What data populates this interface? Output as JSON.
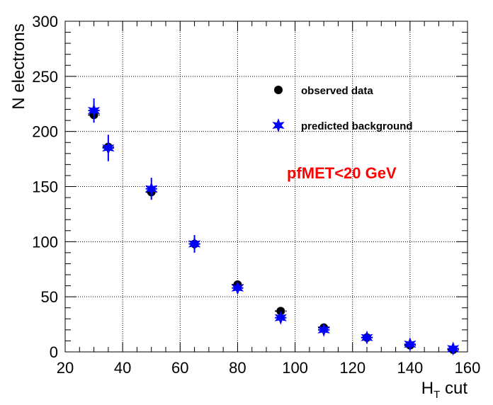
{
  "chart_data": {
    "type": "scatter",
    "title": "",
    "xlabel": "H",
    "xlabel_sub": "T",
    "xlabel_suffix": " cut",
    "ylabel": "N electrons",
    "xlim": [
      20,
      160
    ],
    "ylim": [
      0,
      300
    ],
    "xticks": [
      20,
      40,
      60,
      80,
      100,
      120,
      140,
      160
    ],
    "yticks": [
      0,
      50,
      100,
      150,
      200,
      250,
      300
    ],
    "grid": true,
    "legend_position": "top-right",
    "annotation": {
      "text": "pfMET<20 GeV",
      "color": "#ff0000"
    },
    "series": [
      {
        "name": "observed data",
        "marker": "circle",
        "color": "#000000",
        "x": [
          30,
          35,
          50,
          65,
          80,
          95,
          110,
          125,
          140,
          155
        ],
        "y": [
          215,
          186,
          145,
          98,
          61,
          37,
          22,
          13,
          6,
          2
        ],
        "yerr": [
          3,
          3,
          3,
          3,
          3,
          3,
          3,
          3,
          2,
          1
        ],
        "xerr": [
          2,
          2,
          2,
          2,
          2,
          2,
          2,
          2,
          2,
          2
        ]
      },
      {
        "name": "predicted background",
        "marker": "star",
        "color": "#0000ff",
        "x": [
          30,
          35,
          50,
          65,
          80,
          95,
          110,
          125,
          140,
          155
        ],
        "y": [
          219,
          185,
          148,
          98,
          58,
          31,
          20,
          13,
          7,
          3
        ],
        "yerr": [
          11,
          12,
          10,
          8,
          5,
          4,
          3,
          3,
          2,
          2
        ],
        "xerr": [
          2,
          2,
          2,
          2,
          2,
          2,
          2,
          2,
          2,
          2
        ]
      }
    ]
  }
}
